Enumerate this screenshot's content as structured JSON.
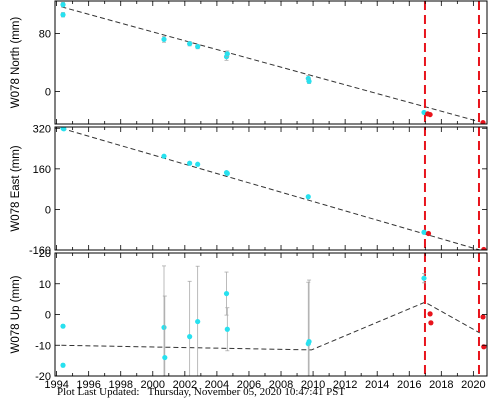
{
  "footer": {
    "label": "Plot Last Updated:",
    "timestamp": "Thursday, November 05, 2020 10:47:41 PST"
  },
  "colors": {
    "observed": "#27e1ef",
    "recent": "#e8141c",
    "model": "#333333",
    "event_line": "#e8141c",
    "error_bar": "#aaaaaa",
    "axis": "#000000"
  },
  "chart_data": [
    {
      "type": "scatter",
      "ylabel": "W078 North (mm)",
      "ylim": [
        -45,
        125
      ],
      "yticks": [
        0,
        80
      ],
      "xlim": [
        1993.9,
        2020.85
      ],
      "xticks": [
        "1994",
        "1996",
        "1998",
        "2000",
        "2002",
        "2004",
        "2006",
        "2008",
        "2010",
        "2012",
        "2014",
        "2016",
        "2018",
        "2020"
      ],
      "show_xticklabels": false,
      "event_lines": [
        2016.98,
        2020.35
      ],
      "model_line": {
        "x": [
          1994.3,
          2020.4
        ],
        "y": [
          117,
          -42
        ]
      },
      "series": [
        {
          "color": "observed",
          "points": [
            {
              "x": 1994.4,
              "y": 120,
              "err": 3
            },
            {
              "x": 1994.4,
              "y": 106,
              "err": 3
            },
            {
              "x": 2000.7,
              "y": 72,
              "err": 4
            },
            {
              "x": 2002.3,
              "y": 66,
              "err": 3
            },
            {
              "x": 2002.8,
              "y": 62,
              "err": 3
            },
            {
              "x": 2004.6,
              "y": 48,
              "err": 5
            },
            {
              "x": 2004.65,
              "y": 52,
              "err": 4
            },
            {
              "x": 2009.7,
              "y": 18,
              "err": 4
            },
            {
              "x": 2009.75,
              "y": 14,
              "err": 3
            },
            {
              "x": 2016.92,
              "y": -29,
              "err": 2
            }
          ]
        },
        {
          "color": "recent",
          "points": [
            {
              "x": 2017.15,
              "y": -31,
              "err": 1
            },
            {
              "x": 2017.3,
              "y": -32,
              "err": 1
            },
            {
              "x": 2020.6,
              "y": -43,
              "err": 1
            }
          ]
        }
      ]
    },
    {
      "type": "scatter",
      "ylabel": "W078 East (mm)",
      "ylim": [
        -160,
        325
      ],
      "yticks": [
        -160,
        0,
        160,
        320
      ],
      "xlim": [
        1993.9,
        2020.85
      ],
      "xticks": [
        "1994",
        "1996",
        "1998",
        "2000",
        "2002",
        "2004",
        "2006",
        "2008",
        "2010",
        "2012",
        "2014",
        "2016",
        "2018",
        "2020"
      ],
      "show_xticklabels": false,
      "event_lines": [
        2016.98,
        2020.35
      ],
      "model_line": {
        "x": [
          1994.3,
          2020.4
        ],
        "y": [
          320,
          -160
        ]
      },
      "series": [
        {
          "color": "observed",
          "points": [
            {
              "x": 1994.4,
              "y": 320,
              "err": 4
            },
            {
              "x": 1994.45,
              "y": 318,
              "err": 4
            },
            {
              "x": 2000.7,
              "y": 210,
              "err": 5
            },
            {
              "x": 2002.3,
              "y": 182,
              "err": 4
            },
            {
              "x": 2002.8,
              "y": 178,
              "err": 4
            },
            {
              "x": 2004.6,
              "y": 145,
              "err": 5
            },
            {
              "x": 2004.65,
              "y": 142,
              "err": 4
            },
            {
              "x": 2009.7,
              "y": 50,
              "err": 4
            },
            {
              "x": 2016.92,
              "y": -90,
              "err": 3
            }
          ]
        },
        {
          "color": "recent",
          "points": [
            {
              "x": 2017.2,
              "y": -95,
              "err": 2
            },
            {
              "x": 2020.65,
              "y": -158,
              "err": 2
            }
          ]
        }
      ]
    },
    {
      "type": "scatter",
      "ylabel": "W078 Up (mm)",
      "ylim": [
        -20,
        20
      ],
      "yticks": [
        -20,
        -10,
        0,
        10,
        20
      ],
      "xlim": [
        1993.9,
        2020.85
      ],
      "xticks": [
        "1994",
        "1996",
        "1998",
        "2000",
        "2002",
        "2004",
        "2006",
        "2008",
        "2010",
        "2012",
        "2014",
        "2016",
        "2018",
        "2020"
      ],
      "show_xticklabels": true,
      "event_lines": [
        2016.98,
        2020.35
      ],
      "model_line": {
        "x": [
          1994.3,
          2009.9,
          2016.98,
          2020.4
        ],
        "y": [
          -10,
          -11.5,
          4,
          -6
        ]
      },
      "series": [
        {
          "color": "observed",
          "points": [
            {
              "x": 1994.4,
              "y": -3.8,
              "err": 0.5
            },
            {
              "x": 1994.4,
              "y": -16.5,
              "err": 0.5
            },
            {
              "x": 2000.7,
              "y": -4.2,
              "err": 20
            },
            {
              "x": 2000.75,
              "y": -14,
              "err": 20
            },
            {
              "x": 2002.3,
              "y": -7.2,
              "err": 18
            },
            {
              "x": 2002.8,
              "y": -2.3,
              "err": 18
            },
            {
              "x": 2004.6,
              "y": 6.8,
              "err": 7
            },
            {
              "x": 2004.65,
              "y": -4.8,
              "err": 7
            },
            {
              "x": 2009.7,
              "y": -9.5,
              "err": 20
            },
            {
              "x": 2009.75,
              "y": -8.8,
              "err": 20
            },
            {
              "x": 2016.92,
              "y": 11.8,
              "err": 1.5
            }
          ]
        },
        {
          "color": "recent",
          "points": [
            {
              "x": 2017.3,
              "y": 0.2,
              "err": 0.5
            },
            {
              "x": 2017.35,
              "y": -2.7,
              "err": 0.5
            },
            {
              "x": 2020.6,
              "y": -0.8,
              "err": 0.5
            },
            {
              "x": 2020.65,
              "y": -10.5,
              "err": 0.5
            }
          ]
        }
      ]
    }
  ]
}
